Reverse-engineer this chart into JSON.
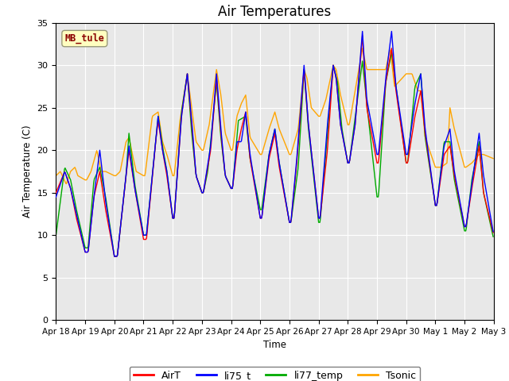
{
  "title": "Air Temperatures",
  "ylabel": "Air Temperature (C)",
  "xlabel": "Time",
  "ylim": [
    0,
    35
  ],
  "yticks": [
    0,
    5,
    10,
    15,
    20,
    25,
    30,
    35
  ],
  "annotation_text": "MB_tule",
  "annotation_color": "#8B0000",
  "annotation_bg": "#FFFFC0",
  "plot_bg": "#E8E8E8",
  "line_colors": {
    "AirT": "#FF0000",
    "li75_t": "#0000FF",
    "li77_temp": "#00AA00",
    "Tsonic": "#FFA500"
  },
  "line_width": 1.0,
  "xtick_labels": [
    "Apr 18",
    "Apr 19",
    "Apr 20",
    "Apr 21",
    "Apr 22",
    "Apr 23",
    "Apr 24",
    "Apr 25",
    "Apr 26",
    "Apr 27",
    "Apr 28",
    "Apr 29",
    "Apr 30",
    "May 1",
    "May 2",
    "May 3"
  ],
  "grid_color": "#FFFFFF",
  "legend_entries": [
    "AirT",
    "li75_t",
    "li77_temp",
    "Tsonic"
  ],
  "legend_colors": [
    "#FF0000",
    "#0000FF",
    "#00AA00",
    "#FFA500"
  ],
  "figsize": [
    6.4,
    4.8
  ],
  "dpi": 100
}
